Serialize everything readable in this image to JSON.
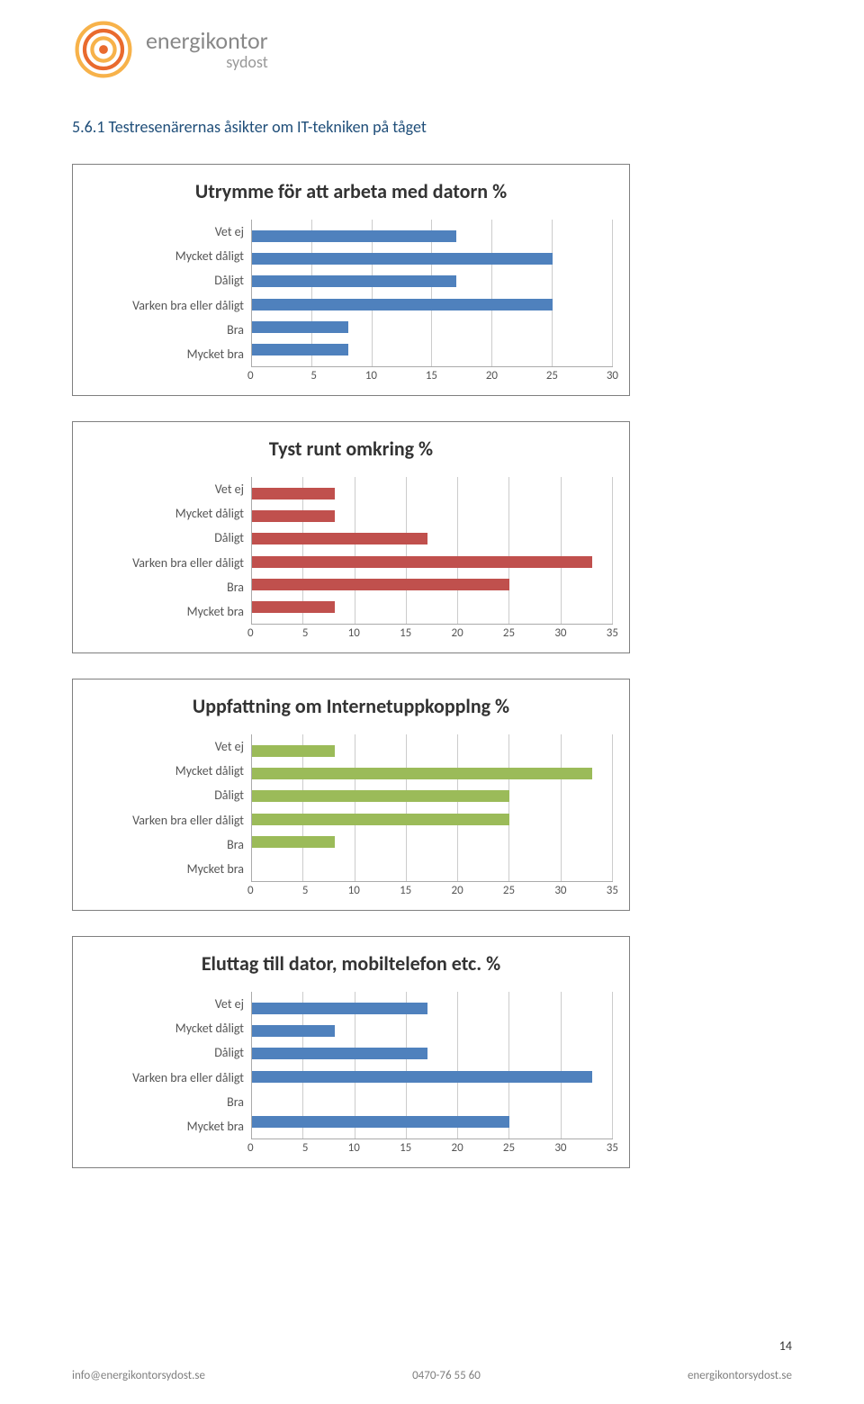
{
  "logo": {
    "brand": "energikontor",
    "sub": "sydost"
  },
  "heading": "5.6.1 Testresenärernas åsikter om IT-tekniken på tåget",
  "categories": [
    "Vet ej",
    "Mycket dåligt",
    "Dåligt",
    "Varken bra eller dåligt",
    "Bra",
    "Mycket bra"
  ],
  "charts": [
    {
      "title": "Utrymme för att arbeta med datorn %",
      "color": "#4f81bd",
      "max": 30,
      "tick_step": 5,
      "values": [
        17,
        25,
        17,
        25,
        8,
        8
      ]
    },
    {
      "title": "Tyst runt omkring %",
      "color": "#c0504d",
      "max": 35,
      "tick_step": 5,
      "values": [
        8,
        8,
        17,
        33,
        25,
        8
      ]
    },
    {
      "title": "Uppfattning om Internetuppkopplng %",
      "color": "#9bbb59",
      "max": 35,
      "tick_step": 5,
      "values": [
        8,
        33,
        25,
        25,
        8,
        0
      ]
    },
    {
      "title": "Eluttag till dator, mobiltelefon etc. %",
      "color": "#4f81bd",
      "max": 35,
      "tick_step": 5,
      "values": [
        17,
        8,
        17,
        33,
        0,
        25
      ]
    }
  ],
  "footer": {
    "left": "info@energikontorsydost.se",
    "center": "0470-76 55 60",
    "right": "energikontorsydost.se"
  },
  "page_number": "14"
}
